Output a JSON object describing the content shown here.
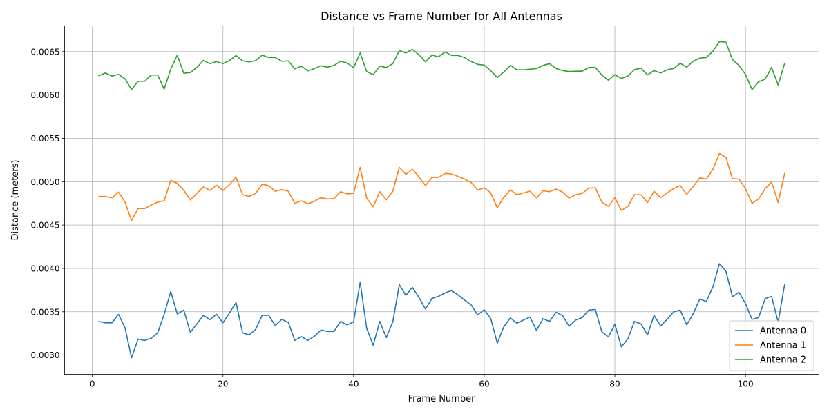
{
  "chart_data": {
    "type": "line",
    "title": "Distance vs Frame Number for All Antennas",
    "xlabel": "Frame Number",
    "ylabel": "Distance (meters)",
    "xlim": [
      -4.25,
      111.25
    ],
    "ylim": [
      0.002778,
      0.006797
    ],
    "xticks": [
      0,
      20,
      40,
      60,
      80,
      100
    ],
    "xtick_labels": [
      "0",
      "20",
      "40",
      "60",
      "80",
      "100"
    ],
    "yticks": [
      0.003,
      0.0035,
      0.004,
      0.0045,
      0.005,
      0.0055,
      0.006,
      0.0065
    ],
    "ytick_labels": [
      "0.0030",
      "0.0035",
      "0.0040",
      "0.0045",
      "0.0050",
      "0.0055",
      "0.0060",
      "0.0065"
    ],
    "grid": true,
    "legend_position": "lower-right",
    "x_start": 1,
    "series": [
      {
        "name": "Antenna 0",
        "color": "#1f77b4",
        "values": [
          0.003388,
          0.003372,
          0.003372,
          0.003471,
          0.003316,
          0.002969,
          0.003185,
          0.003169,
          0.003193,
          0.003257,
          0.003471,
          0.003733,
          0.003475,
          0.003519,
          0.003261,
          0.00336,
          0.003459,
          0.003408,
          0.003471,
          0.003372,
          0.003487,
          0.003606,
          0.003257,
          0.003233,
          0.003296,
          0.003459,
          0.003459,
          0.00334,
          0.003412,
          0.003376,
          0.003169,
          0.003213,
          0.003169,
          0.003217,
          0.003289,
          0.003273,
          0.003273,
          0.003388,
          0.003348,
          0.003384,
          0.00384,
          0.003309,
          0.003114,
          0.003388,
          0.003201,
          0.003384,
          0.003812,
          0.003689,
          0.003781,
          0.003665,
          0.003531,
          0.003654,
          0.003677,
          0.003717,
          0.003745,
          0.003693,
          0.003634,
          0.003578,
          0.003463,
          0.003523,
          0.00342,
          0.003138,
          0.003328,
          0.003428,
          0.003368,
          0.003404,
          0.003439,
          0.003285,
          0.00342,
          0.003388,
          0.003495,
          0.003455,
          0.003332,
          0.003404,
          0.003432,
          0.003519,
          0.003527,
          0.003269,
          0.003209,
          0.003356,
          0.003094,
          0.003189,
          0.003388,
          0.00336,
          0.003233,
          0.003459,
          0.003336,
          0.003412,
          0.003499,
          0.003519,
          0.003348,
          0.003479,
          0.003646,
          0.003618,
          0.003785,
          0.004054,
          0.003968,
          0.003673,
          0.003725,
          0.003594,
          0.003412,
          0.003432,
          0.00365,
          0.003677,
          0.00338,
          0.003816
        ]
      },
      {
        "name": "Antenna 1",
        "color": "#ff7f0e",
        "values": [
          0.00483,
          0.00483,
          0.004814,
          0.00488,
          0.004765,
          0.004553,
          0.00469,
          0.00469,
          0.00473,
          0.004765,
          0.00478,
          0.005015,
          0.00498,
          0.0049,
          0.00479,
          0.004865,
          0.00494,
          0.0049,
          0.00496,
          0.0049,
          0.004965,
          0.00505,
          0.00485,
          0.00483,
          0.004865,
          0.00497,
          0.004955,
          0.00489,
          0.00491,
          0.00489,
          0.00475,
          0.00478,
          0.004745,
          0.004775,
          0.004815,
          0.0048,
          0.004805,
          0.004885,
          0.00486,
          0.004865,
          0.005165,
          0.00481,
          0.00471,
          0.004885,
          0.00479,
          0.00489,
          0.005165,
          0.005085,
          0.005145,
          0.005055,
          0.004955,
          0.00505,
          0.00505,
          0.005095,
          0.00509,
          0.00506,
          0.00503,
          0.00499,
          0.004905,
          0.00493,
          0.00487,
          0.0047,
          0.00482,
          0.004905,
          0.00485,
          0.00487,
          0.00489,
          0.004815,
          0.004895,
          0.004885,
          0.004915,
          0.00488,
          0.00481,
          0.00485,
          0.004865,
          0.004925,
          0.00493,
          0.004765,
          0.004715,
          0.004815,
          0.00467,
          0.004715,
          0.00485,
          0.00485,
          0.00476,
          0.00489,
          0.004815,
          0.00487,
          0.00492,
          0.004955,
          0.004855,
          0.004945,
          0.005045,
          0.00503,
          0.00514,
          0.005325,
          0.00528,
          0.005035,
          0.00503,
          0.00492,
          0.00475,
          0.0048,
          0.00492,
          0.004995,
          0.00476,
          0.005095
        ]
      },
      {
        "name": "Antenna 2",
        "color": "#2ca02c",
        "values": [
          0.006222,
          0.006254,
          0.006218,
          0.006238,
          0.006186,
          0.006063,
          0.006158,
          0.006158,
          0.00623,
          0.00623,
          0.006067,
          0.006297,
          0.00646,
          0.00625,
          0.006258,
          0.006317,
          0.0064,
          0.006361,
          0.006385,
          0.006361,
          0.006397,
          0.006456,
          0.006393,
          0.006381,
          0.006397,
          0.00646,
          0.006432,
          0.006432,
          0.006389,
          0.006393,
          0.006301,
          0.006333,
          0.006278,
          0.006305,
          0.006337,
          0.006321,
          0.006341,
          0.006389,
          0.006369,
          0.006313,
          0.006484,
          0.00627,
          0.006234,
          0.006333,
          0.006317,
          0.006361,
          0.006512,
          0.006484,
          0.006527,
          0.006464,
          0.006381,
          0.00646,
          0.00644,
          0.006496,
          0.006456,
          0.006456,
          0.006432,
          0.006385,
          0.006353,
          0.006345,
          0.006278,
          0.006202,
          0.006266,
          0.006341,
          0.00629,
          0.00629,
          0.006297,
          0.006305,
          0.006341,
          0.006361,
          0.006305,
          0.006282,
          0.00627,
          0.006274,
          0.006274,
          0.006317,
          0.006317,
          0.00623,
          0.00617,
          0.006234,
          0.00619,
          0.006218,
          0.006293,
          0.006309,
          0.00623,
          0.006282,
          0.006254,
          0.00629,
          0.006305,
          0.006365,
          0.006321,
          0.006389,
          0.006425,
          0.006432,
          0.006504,
          0.006614,
          0.00661,
          0.006408,
          0.006341,
          0.006238,
          0.006063,
          0.006151,
          0.006182,
          0.006317,
          0.006115,
          0.006365
        ]
      }
    ]
  }
}
